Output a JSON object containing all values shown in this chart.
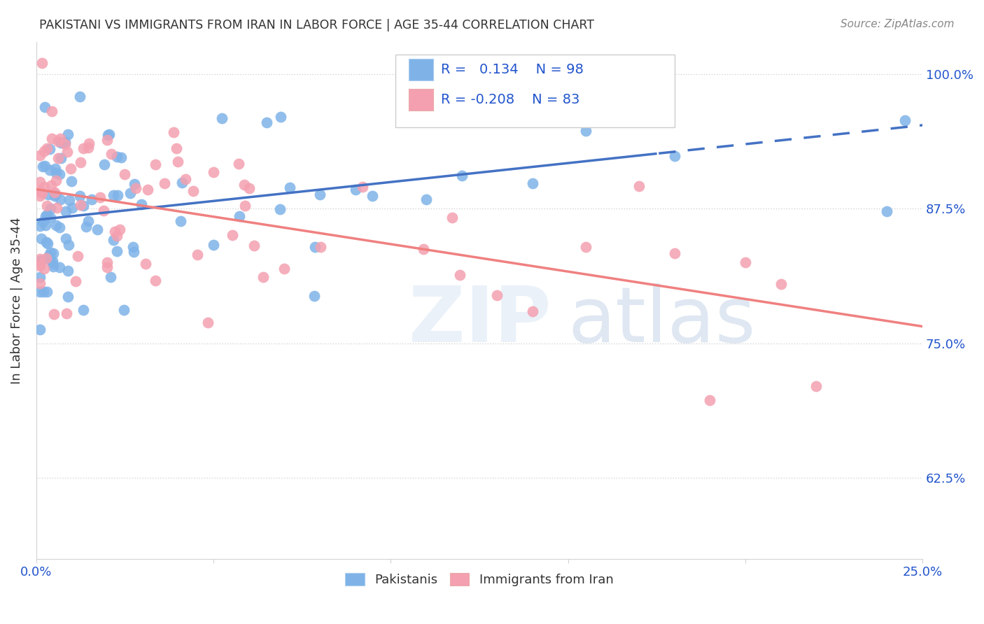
{
  "title": "PAKISTANI VS IMMIGRANTS FROM IRAN IN LABOR FORCE | AGE 35-44 CORRELATION CHART",
  "source": "Source: ZipAtlas.com",
  "ylabel": "In Labor Force | Age 35-44",
  "xlim": [
    0.0,
    0.25
  ],
  "ylim": [
    0.55,
    1.03
  ],
  "yticks": [
    0.625,
    0.75,
    0.875,
    1.0
  ],
  "ytick_labels": [
    "62.5%",
    "75.0%",
    "87.5%",
    "100.0%"
  ],
  "xticks": [
    0.0,
    0.05,
    0.1,
    0.15,
    0.2,
    0.25
  ],
  "xtick_labels": [
    "0.0%",
    "",
    "",
    "",
    "",
    "25.0%"
  ],
  "blue_color": "#7FB3E8",
  "pink_color": "#F4A0B0",
  "blue_line_color": "#4472C4",
  "pink_line_color": "#F08080",
  "r1": "0.134",
  "n1": "98",
  "r2": "-0.208",
  "n2": "83"
}
